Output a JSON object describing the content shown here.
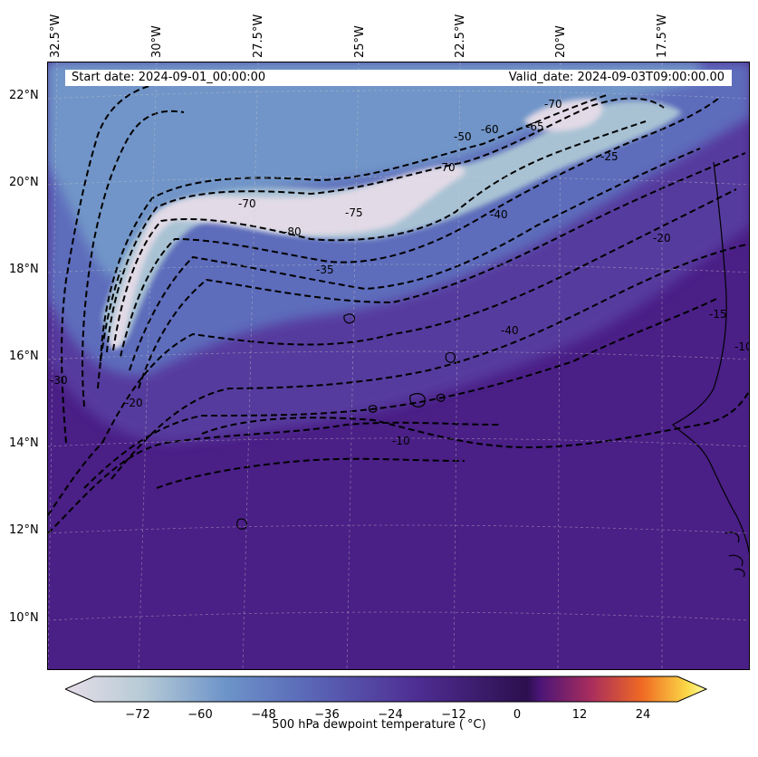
{
  "map": {
    "longitude_labels": [
      "32.5°W",
      "30°W",
      "27.5°W",
      "25°W",
      "22.5°W",
      "20°W",
      "17.5°W"
    ],
    "latitude_labels": [
      "22°N",
      "20°N",
      "18°N",
      "16°N",
      "14°N",
      "12°N",
      "10°N"
    ],
    "start_date": "Start date: 2024-09-01_00:00:00",
    "valid_date": "Valid_date: 2024-09-03T09:00:00.00",
    "contour_labels": [
      "-70",
      "-65",
      "-60",
      "-50",
      "-70",
      "-40",
      "-25",
      "-20",
      "-15",
      "-10",
      "-35",
      "-75",
      "-80",
      "-70",
      "-30",
      "-20",
      "-10",
      "-40"
    ],
    "colors": {
      "dry_core": "#e3dbe6",
      "very_dry": "#b9ccd9",
      "dry": "#6e93c8",
      "mid": "#5a62b4",
      "moist": "#4f2a8c",
      "background": "#4a1f86"
    }
  },
  "colorbar": {
    "ticks": [
      "−72",
      "−60",
      "−48",
      "−36",
      "−24",
      "−12",
      "0",
      "12",
      "24"
    ],
    "label": "500 hPa dewpoint temperature ( °C)"
  }
}
